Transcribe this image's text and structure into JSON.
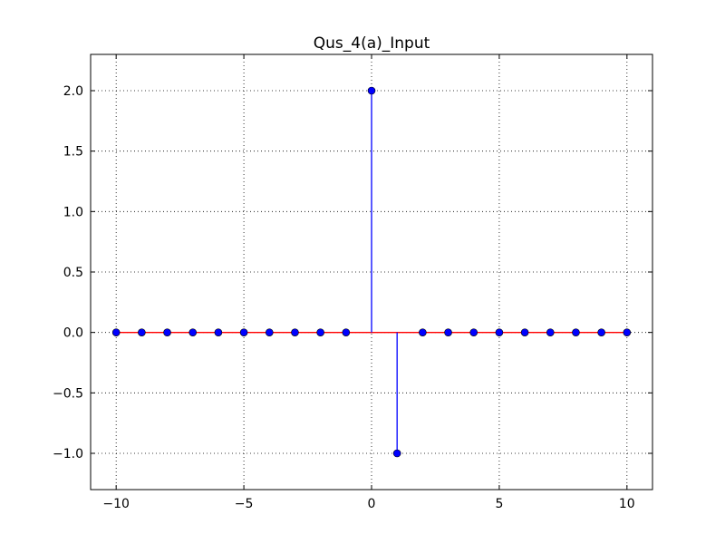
{
  "chart_data": {
    "type": "stem",
    "title": "Qus_4(a)_Input",
    "xlabel": "",
    "ylabel": "",
    "xlim": [
      -11,
      11
    ],
    "ylim": [
      -1.3,
      2.3
    ],
    "xticks": [
      -10,
      -5,
      0,
      5,
      10
    ],
    "xtick_labels": [
      "−10",
      "−5",
      "0",
      "5",
      "10"
    ],
    "yticks": [
      -1.0,
      -0.5,
      0.0,
      0.5,
      1.0,
      1.5,
      2.0
    ],
    "ytick_labels": [
      "−1.0",
      "−0.5",
      "0.0",
      "0.5",
      "1.0",
      "1.5",
      "2.0"
    ],
    "grid": true,
    "x": [
      -10,
      -9,
      -8,
      -7,
      -6,
      -5,
      -4,
      -3,
      -2,
      -1,
      0,
      1,
      2,
      3,
      4,
      5,
      6,
      7,
      8,
      9,
      10
    ],
    "y": [
      0,
      0,
      0,
      0,
      0,
      0,
      0,
      0,
      0,
      0,
      2,
      -1,
      0,
      0,
      0,
      0,
      0,
      0,
      0,
      0,
      0
    ],
    "colors": {
      "stem": "#0000ff",
      "marker": "#0000ff",
      "baseline": "#ff0000"
    }
  }
}
